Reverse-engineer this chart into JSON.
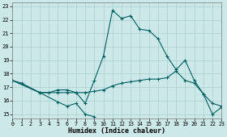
{
  "xlabel": "Humidex (Indice chaleur)",
  "bg_color": "#cde8e8",
  "grid_color": "#aacfcf",
  "line_color": "#006060",
  "xlim": [
    0,
    23
  ],
  "ylim": [
    14.7,
    23.3
  ],
  "yticks": [
    15,
    16,
    17,
    18,
    19,
    20,
    21,
    22,
    23
  ],
  "xticks": [
    0,
    1,
    2,
    3,
    4,
    5,
    6,
    7,
    8,
    9,
    10,
    11,
    12,
    13,
    14,
    15,
    16,
    17,
    18,
    19,
    20,
    21,
    22,
    23
  ],
  "line1_x": [
    0,
    1,
    3,
    4,
    5,
    6,
    7,
    8,
    9,
    10,
    11,
    12,
    13,
    14,
    15,
    16,
    17,
    18,
    19,
    20,
    21,
    22,
    23
  ],
  "line1_y": [
    17.5,
    17.3,
    16.6,
    16.6,
    16.8,
    16.8,
    16.6,
    15.8,
    17.5,
    19.3,
    22.7,
    22.1,
    22.3,
    21.3,
    21.2,
    20.6,
    19.3,
    18.3,
    19.0,
    17.5,
    16.5,
    15.0,
    15.5
  ],
  "line2_x": [
    0,
    3,
    5,
    6,
    7,
    8,
    9
  ],
  "line2_y": [
    17.5,
    16.6,
    15.9,
    15.6,
    15.8,
    15.0,
    14.8
  ],
  "line3_x": [
    0,
    3,
    5,
    6,
    7,
    8,
    9,
    10,
    11,
    12,
    13,
    14,
    15,
    16,
    17,
    18,
    19,
    20,
    21,
    22,
    23
  ],
  "line3_y": [
    17.5,
    16.6,
    16.6,
    16.6,
    16.6,
    16.6,
    16.7,
    16.8,
    17.1,
    17.3,
    17.4,
    17.5,
    17.6,
    17.6,
    17.7,
    18.2,
    17.5,
    17.3,
    16.5,
    15.8,
    15.6
  ]
}
